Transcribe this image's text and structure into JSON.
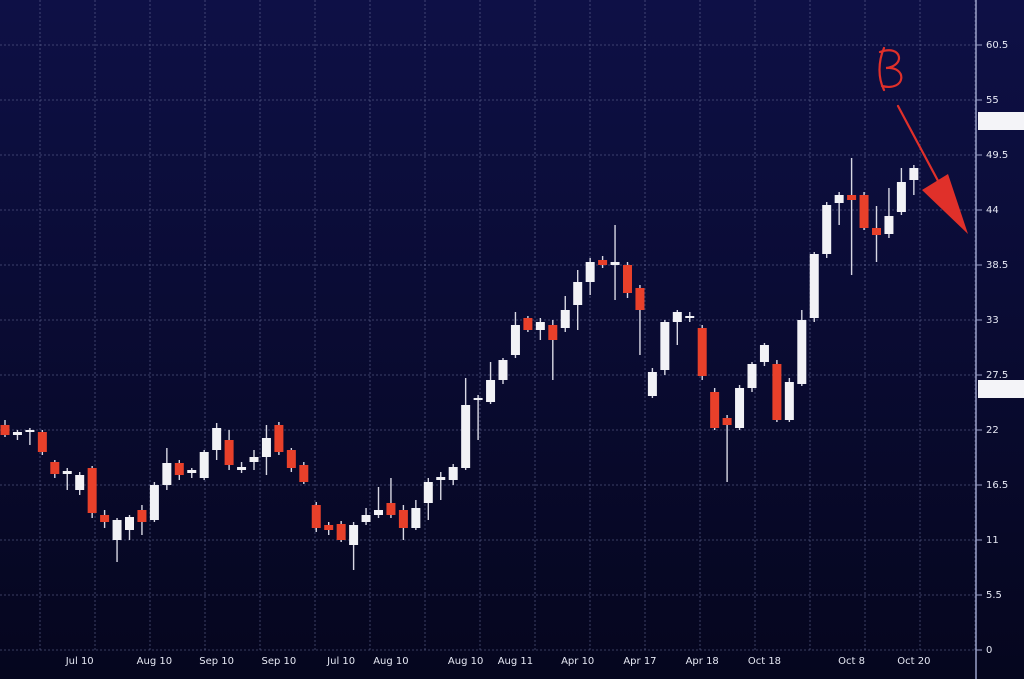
{
  "chart_data": {
    "type": "candlestick",
    "categories": [
      null,
      null,
      null,
      null,
      null,
      null,
      "Jul 10",
      null,
      null,
      null,
      null,
      null,
      "Aug 10",
      null,
      null,
      null,
      null,
      "Sep 10",
      null,
      null,
      null,
      null,
      "Sep 10",
      null,
      null,
      null,
      null,
      "Jul 10",
      null,
      null,
      null,
      "Aug 10",
      null,
      null,
      null,
      null,
      null,
      "Aug 10",
      null,
      null,
      null,
      "Aug 11",
      null,
      null,
      null,
      null,
      "Apr 10",
      null,
      null,
      null,
      null,
      "Apr 17",
      null,
      null,
      null,
      null,
      "Apr 18",
      null,
      null,
      null,
      null,
      "Oct 18",
      null,
      null,
      null,
      null,
      null,
      null,
      "Oct 8",
      null,
      null,
      null,
      null,
      "Oct 20"
    ],
    "open": [
      22.5,
      21.5,
      21.8,
      21.8,
      18.8,
      17.6,
      16,
      18.2,
      13.5,
      11,
      12,
      14,
      13,
      16.5,
      18.7,
      17.7,
      17.2,
      20,
      21,
      18,
      18.8,
      19.3,
      22.5,
      20,
      18.5,
      14.5,
      12.5,
      12.6,
      10.5,
      12.8,
      13.5,
      14.7,
      14,
      12.2,
      14.7,
      17,
      17,
      18.2,
      25,
      24.8,
      27,
      29.5,
      33.2,
      32,
      32.5,
      32.2,
      34.5,
      36.8,
      39,
      38.5,
      38.5,
      36.2,
      25.4,
      28,
      32.8,
      33.2,
      32.2,
      25.8,
      23.2,
      22.2,
      26.2,
      28.8,
      28.6,
      23,
      26.6,
      33.2,
      39.6,
      44.7,
      45.5,
      45.5,
      42.2,
      41.6,
      43.8,
      47
    ],
    "high": [
      23,
      22,
      22.2,
      22,
      19,
      18.2,
      17.8,
      18.4,
      14,
      13.2,
      13.5,
      14.5,
      16.8,
      20.2,
      19,
      18.2,
      20,
      22.7,
      22,
      18.8,
      20,
      22.5,
      22.8,
      20.2,
      18.8,
      14.8,
      12.8,
      12.9,
      12.8,
      14.2,
      16.3,
      17.2,
      14.5,
      15,
      17.2,
      17.8,
      18.6,
      27.2,
      25.5,
      28.8,
      29.2,
      33.8,
      33.4,
      33.2,
      33,
      35.4,
      38,
      39.2,
      39.4,
      42.5,
      38.8,
      36.5,
      28.2,
      33,
      34,
      33.8,
      32.5,
      26.2,
      23.5,
      26.5,
      28.8,
      30.7,
      29,
      27.2,
      34,
      39.8,
      44.8,
      45.8,
      49.2,
      45.8,
      44.4,
      46.2,
      48.2,
      48.5
    ],
    "low": [
      21.3,
      21,
      20.5,
      19.5,
      17.2,
      16,
      15.5,
      13.2,
      12.2,
      8.8,
      11,
      11.5,
      12.8,
      16,
      17,
      17.2,
      17,
      19,
      18,
      17.7,
      18,
      17.5,
      19.5,
      17.8,
      16.6,
      11.8,
      11.5,
      10.8,
      8,
      12.5,
      13.2,
      13.2,
      11,
      12,
      13,
      15,
      16.5,
      18,
      21,
      24.6,
      26.6,
      29.2,
      31.8,
      31,
      27,
      31.8,
      32,
      35.5,
      38.2,
      35,
      35.2,
      29.5,
      25.2,
      27.5,
      30.5,
      32.8,
      27,
      22,
      16.8,
      22,
      25.8,
      28.4,
      22.8,
      22.8,
      26.4,
      32.8,
      39.2,
      42.5,
      37.5,
      42,
      38.8,
      41.2,
      43.5,
      45.5
    ],
    "close": [
      21.5,
      21.8,
      22,
      19.8,
      17.6,
      17.9,
      17.5,
      13.7,
      12.8,
      13,
      13.3,
      12.8,
      16.5,
      18.7,
      17.5,
      18,
      19.8,
      22.2,
      18.5,
      18.3,
      19.3,
      21.2,
      19.8,
      18.2,
      16.8,
      12.2,
      12,
      11,
      12.5,
      13.5,
      14,
      13.5,
      12.2,
      14.2,
      16.8,
      17.3,
      18.3,
      24.5,
      25.2,
      27,
      29,
      32.5,
      32,
      32.8,
      31,
      34,
      36.8,
      38.8,
      38.5,
      38.8,
      35.7,
      34,
      27.8,
      32.8,
      33.8,
      33.4,
      27.4,
      22.2,
      22.5,
      26.2,
      28.6,
      30.5,
      23,
      26.8,
      33,
      39.6,
      44.5,
      45.5,
      45,
      42.2,
      41.5,
      43.4,
      46.8,
      48.2
    ],
    "up_color": "#f2f2f6",
    "down_color": "#e8402a",
    "ylim": [
      0,
      66
    ],
    "yticks": [
      0,
      5.5,
      11,
      16.5,
      22,
      27.5,
      33,
      38.5,
      44,
      49.5,
      55,
      60.5
    ],
    "grid": true
  }
}
